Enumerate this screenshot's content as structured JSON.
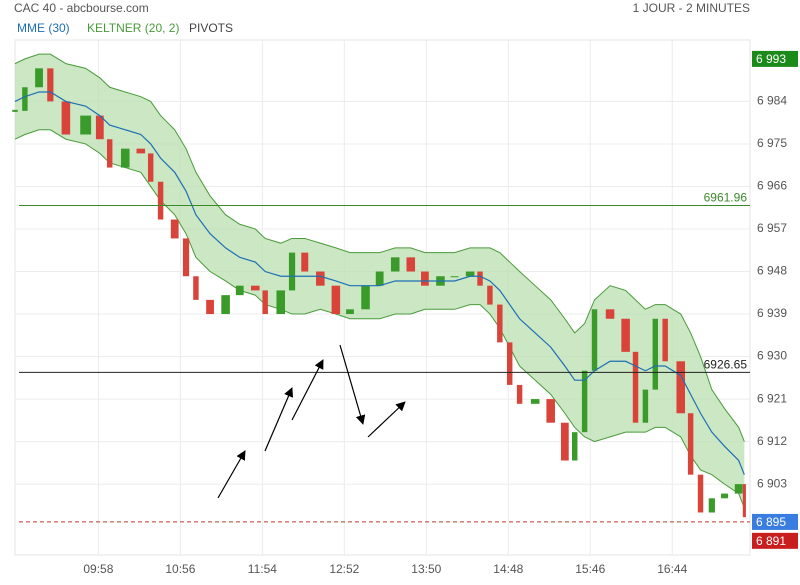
{
  "chart_data": {
    "type": "candlestick",
    "title": "CAC 40 - abcbourse.com",
    "subtitle": "1 JOUR - 2 MINUTES",
    "x": [
      539,
      546,
      556,
      564,
      575,
      589,
      599,
      606,
      617,
      628,
      635,
      642,
      652,
      660,
      667,
      677,
      688,
      698,
      709,
      716,
      727,
      735,
      744,
      755,
      766,
      776,
      787,
      797,
      808,
      819,
      829,
      840,
      850,
      861,
      868,
      875,
      882,
      889,
      896,
      907,
      918,
      928,
      935,
      942,
      949,
      960,
      971,
      978,
      985,
      992,
      999,
      1010,
      1017,
      1024,
      1032,
      1041,
      1051,
      1055
    ],
    "closes": [
      6982,
      6987,
      6991,
      6984,
      6977,
      6981,
      6976,
      6970,
      6974,
      6973,
      6967,
      6959,
      6955,
      6947,
      6942,
      6939,
      6943,
      6945,
      6944,
      6939,
      6944,
      6952,
      6948,
      6945,
      6939,
      6940,
      6945,
      6948,
      6951,
      6948,
      6945,
      6947,
      6947,
      6948,
      6945,
      6941,
      6933,
      6924,
      6920,
      6921,
      6916,
      6908,
      6914,
      6927,
      6940,
      6938,
      6931,
      6916,
      6923,
      6938,
      6929,
      6918,
      6905,
      6897,
      6900,
      6901,
      6903,
      6896
    ],
    "up_color": "#3a9a2a",
    "down_color": "#d9443a",
    "ema": {
      "name": "MME (30)",
      "color": "#1f6fb4",
      "values": [
        6984,
        6985,
        6986,
        6986,
        6984,
        6983,
        6981,
        6979,
        6978,
        6977,
        6975,
        6972,
        6969,
        6965,
        6960,
        6956,
        6953,
        6951,
        6950,
        6948,
        6947,
        6947,
        6947,
        6947,
        6946,
        6945,
        6945,
        6945,
        6946,
        6946,
        6946,
        6946,
        6946,
        6947,
        6947,
        6946,
        6944,
        6941,
        6938,
        6935,
        6932,
        6928,
        6925,
        6925,
        6927,
        6929,
        6929,
        6928,
        6927,
        6928,
        6928,
        6926,
        6922,
        6918,
        6914,
        6911,
        6908,
        6905
      ]
    },
    "keltner": {
      "name": "KELTNER (20, 2)",
      "color": "#4a9a3a",
      "fill": "#b9dfb0",
      "upper": [
        6992,
        6993,
        6994,
        6994,
        6992,
        6991,
        6989,
        6987,
        6986,
        6985,
        6984,
        6981,
        6978,
        6974,
        6969,
        6964,
        6960,
        6958,
        6957,
        6955,
        6954,
        6955,
        6955,
        6954,
        6953,
        6952,
        6952,
        6952,
        6953,
        6953,
        6952,
        6952,
        6952,
        6953,
        6953,
        6953,
        6952,
        6950,
        6948,
        6945,
        6942,
        6938,
        6935,
        6937,
        6942,
        6945,
        6944,
        6942,
        6940,
        6941,
        6941,
        6939,
        6935,
        6930,
        6923,
        6919,
        6915,
        6912
      ],
      "lower": [
        6976,
        6977,
        6978,
        6978,
        6976,
        6975,
        6973,
        6971,
        6970,
        6969,
        6966,
        6963,
        6960,
        6956,
        6951,
        6948,
        6946,
        6944,
        6943,
        6941,
        6940,
        6939,
        6939,
        6940,
        6939,
        6938,
        6938,
        6938,
        6939,
        6939,
        6940,
        6940,
        6940,
        6941,
        6941,
        6939,
        6936,
        6932,
        6928,
        6925,
        6922,
        6918,
        6915,
        6913,
        6912,
        6913,
        6914,
        6914,
        6914,
        6915,
        6915,
        6913,
        6909,
        6906,
        6905,
        6903,
        6901,
        6898
      ]
    },
    "pivots": {
      "name": "PIVOTS",
      "levels": [
        {
          "value": 6961.96,
          "color": "#3a8a2a"
        },
        {
          "value": 6926.65,
          "color": "#222222"
        }
      ]
    },
    "last": {
      "value": 6895,
      "label": "6 895",
      "color": "#3a7de0"
    },
    "badges": [
      {
        "value": 6993,
        "label": "6 993",
        "color": "#1a8a1a"
      },
      {
        "value": 6891,
        "label": "6 891",
        "color": "#c81e1e"
      }
    ],
    "xlim": [
      539,
      1059
    ],
    "ylim": [
      6888,
      6997
    ],
    "xticks": [
      {
        "value": 598,
        "label": "09:58"
      },
      {
        "value": 656,
        "label": "10:56"
      },
      {
        "value": 714,
        "label": "11:54"
      },
      {
        "value": 772,
        "label": "12:52"
      },
      {
        "value": 830,
        "label": "13:50"
      },
      {
        "value": 888,
        "label": "14:48"
      },
      {
        "value": 946,
        "label": "15:46"
      },
      {
        "value": 1004,
        "label": "16:44"
      }
    ],
    "yticks": [
      {
        "value": 6984,
        "label": "6 984"
      },
      {
        "value": 6975,
        "label": "6 975"
      },
      {
        "value": 6966,
        "label": "6 966"
      },
      {
        "value": 6957,
        "label": "6 957"
      },
      {
        "value": 6948,
        "label": "6 948"
      },
      {
        "value": 6939,
        "label": "6 939"
      },
      {
        "value": 6930,
        "label": "6 930"
      },
      {
        "value": 6921,
        "label": "6 921"
      },
      {
        "value": 6912,
        "label": "6 912"
      },
      {
        "value": 6903,
        "label": "6 903"
      }
    ],
    "grid": true
  }
}
